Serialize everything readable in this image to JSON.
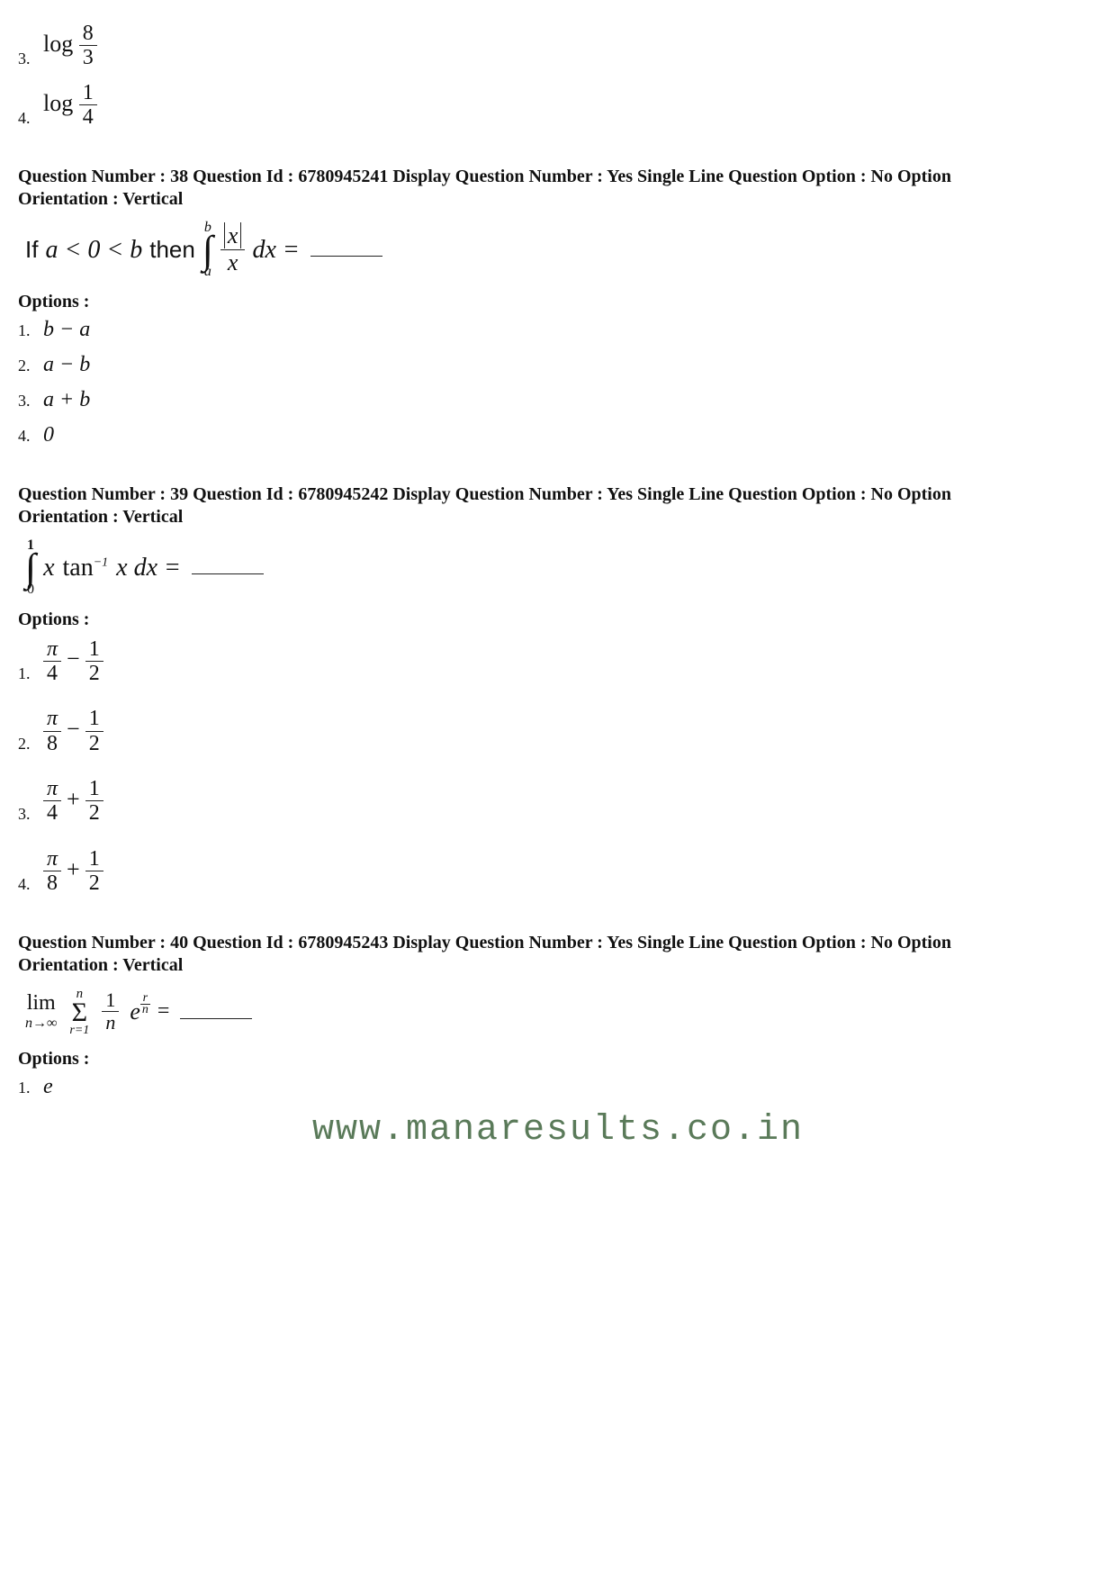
{
  "colors": {
    "text": "#111111",
    "bg": "#ffffff",
    "rule": "#222222",
    "watermark": "#5a7a59"
  },
  "prev_options": {
    "o3": {
      "num": "3.",
      "pre": "log",
      "frac_num": "8",
      "frac_den": "3"
    },
    "o4": {
      "num": "4.",
      "pre": "log",
      "frac_num": "1",
      "frac_den": "4"
    }
  },
  "q38": {
    "meta": "Question Number : 38  Question Id : 6780945241  Display Question Number : Yes  Single Line Question Option : No  Option Orientation : Vertical",
    "stmt_if": "If ",
    "stmt_cond": "a < 0 < b",
    "stmt_then": " then ",
    "int_ub": "b",
    "int_lb": "a",
    "frac_num": "x",
    "frac_den": "x",
    "dx": "dx =",
    "options_label": "Options :",
    "opts": [
      {
        "num": "1.",
        "expr": "b − a"
      },
      {
        "num": "2.",
        "expr": "a − b"
      },
      {
        "num": "3.",
        "expr": "a + b"
      },
      {
        "num": "4.",
        "expr": "0"
      }
    ]
  },
  "q39": {
    "meta": "Question Number : 39  Question Id : 6780945242  Display Question Number : Yes  Single Line Question Option : No  Option Orientation : Vertical",
    "int_ub": "1",
    "int_lb": "0",
    "integrand1": "x",
    "integrand2": "tan",
    "integrand_sup": "−1",
    "integrand3": "x dx =",
    "options_label": "Options :",
    "opts": [
      {
        "num": "1.",
        "a_num": "π",
        "a_den": "4",
        "op": "−",
        "b_num": "1",
        "b_den": "2"
      },
      {
        "num": "2.",
        "a_num": "π",
        "a_den": "8",
        "op": "−",
        "b_num": "1",
        "b_den": "2"
      },
      {
        "num": "3.",
        "a_num": "π",
        "a_den": "4",
        "op": "+",
        "b_num": "1",
        "b_den": "2"
      },
      {
        "num": "4.",
        "a_num": "π",
        "a_den": "8",
        "op": "+",
        "b_num": "1",
        "b_den": "2"
      }
    ]
  },
  "q40": {
    "meta": "Question Number : 40  Question Id : 6780945243  Display Question Number : Yes  Single Line Question Option : No  Option Orientation : Vertical",
    "lim_top": "lim",
    "lim_bot": "n→∞",
    "sum_ub": "n",
    "sum_sym": "Σ",
    "sum_lb": "r=1",
    "term1_num": "1",
    "term1_den": "n",
    "e": "e",
    "exp_num": "r",
    "exp_den": "n",
    "eq": " = ",
    "options_label": "Options :",
    "opts": [
      {
        "num": "1.",
        "expr": "e"
      }
    ]
  },
  "watermark": "www.manaresults.co.in"
}
